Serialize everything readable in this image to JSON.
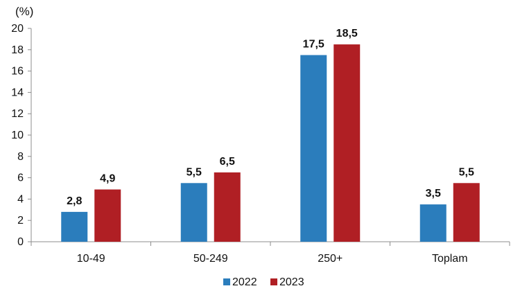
{
  "chart_data": {
    "type": "bar",
    "unit_label": "(%)",
    "categories": [
      "10-49",
      "50-249",
      "250+",
      "Toplam"
    ],
    "series": [
      {
        "name": "2022",
        "color": "#2b7dbc",
        "values": [
          2.8,
          5.5,
          17.5,
          3.5
        ],
        "labels": [
          "2,8",
          "5,5",
          "17,5",
          "3,5"
        ]
      },
      {
        "name": "2023",
        "color": "#b01f24",
        "values": [
          4.9,
          6.5,
          18.5,
          5.5
        ],
        "labels": [
          "4,9",
          "6,5",
          "18,5",
          "5,5"
        ]
      }
    ],
    "ylim": [
      0,
      20
    ],
    "yticks": [
      0,
      2,
      4,
      6,
      8,
      10,
      12,
      14,
      16,
      18,
      20
    ],
    "grid": false,
    "legend_position": "bottom-center"
  }
}
